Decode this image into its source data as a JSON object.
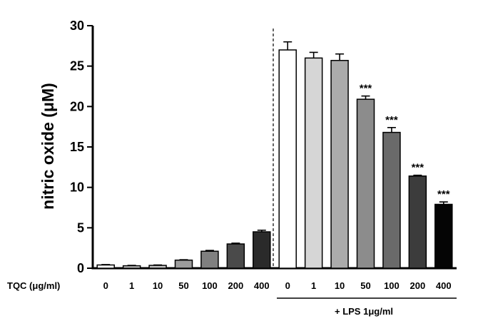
{
  "chart_data": {
    "type": "bar",
    "ylabel": "nitric oxide (μM)",
    "xlabel": "TQC (μg/ml)",
    "ylim": [
      0,
      30
    ],
    "yticks": [
      "0",
      "5",
      "10",
      "15",
      "20",
      "25",
      "30"
    ],
    "group_label": "+ LPS 1μg/ml",
    "categories": [
      "0",
      "1",
      "10",
      "50",
      "100",
      "200",
      "400",
      "0",
      "1",
      "10",
      "50",
      "100",
      "200",
      "400"
    ],
    "values": [
      0.4,
      0.3,
      0.35,
      1.0,
      2.1,
      3.0,
      4.5,
      27.0,
      26.0,
      25.7,
      20.9,
      16.8,
      11.4,
      7.9
    ],
    "errors": [
      0.05,
      0.05,
      0.05,
      0.05,
      0.1,
      0.1,
      0.2,
      1.0,
      0.7,
      0.8,
      0.4,
      0.6,
      0.1,
      0.3
    ],
    "colors": [
      "#ffffff",
      "#cfcfcf",
      "#c4c4c4",
      "#9c9c9c",
      "#808080",
      "#4a4a4a",
      "#2a2a2a",
      "#ffffff",
      "#d6d6d6",
      "#ababab",
      "#8c8c8c",
      "#6a6a6a",
      "#3c3c3c",
      "#050505"
    ],
    "significance": [
      "",
      "",
      "",
      "",
      "",
      "",
      "",
      "",
      "",
      "",
      "***",
      "***",
      "***",
      "***"
    ]
  }
}
